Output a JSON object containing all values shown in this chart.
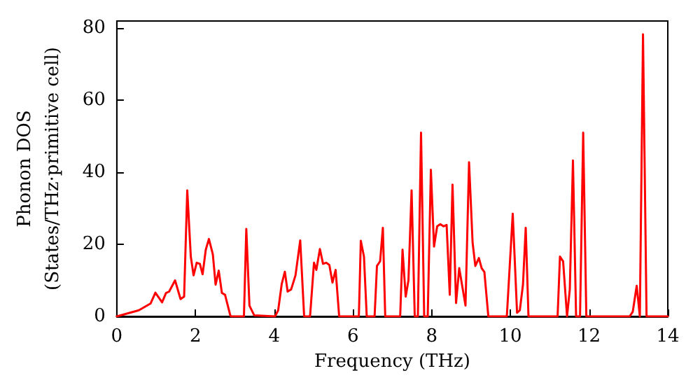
{
  "chart_data": {
    "type": "line",
    "xlabel": "Frequency (THz)",
    "ylabel": "Phonon DOS\n(States/THz·primitive cell)",
    "xlim": [
      0,
      14
    ],
    "xticks": [
      0,
      2,
      4,
      6,
      8,
      10,
      12,
      14
    ],
    "ylim": [
      0,
      82
    ],
    "yticks": [
      0,
      20,
      40,
      60,
      80
    ],
    "grid": false,
    "marker": "none",
    "line_style": "solid",
    "series": [
      {
        "color": "#ff0000",
        "x": [
          0,
          0.56,
          0.86,
          0.98,
          1.15,
          1.25,
          1.33,
          1.48,
          1.62,
          1.71,
          1.79,
          1.88,
          1.95,
          2.03,
          2.11,
          2.18,
          2.26,
          2.34,
          2.44,
          2.51,
          2.59,
          2.67,
          2.75,
          2.88,
          2.9,
          3.23,
          3.29,
          3.37,
          3.49,
          4.02,
          4.1,
          4.19,
          4.27,
          4.34,
          4.43,
          4.54,
          4.66,
          4.76,
          4.91,
          5.01,
          5.07,
          5.16,
          5.24,
          5.32,
          5.4,
          5.48,
          5.56,
          5.65,
          6.15,
          6.2,
          6.28,
          6.35,
          6.55,
          6.61,
          6.69,
          6.76,
          6.82,
          7.2,
          7.26,
          7.34,
          7.41,
          7.49,
          7.57,
          7.65,
          7.73,
          7.81,
          7.9,
          7.98,
          8.06,
          8.14,
          8.22,
          8.3,
          8.38,
          8.46,
          8.53,
          8.62,
          8.7,
          8.86,
          8.95,
          9.04,
          9.11,
          9.2,
          9.27,
          9.34,
          9.44,
          9.91,
          10.06,
          10.17,
          10.24,
          10.32,
          10.39,
          10.46,
          11.2,
          11.26,
          11.34,
          11.44,
          11.51,
          11.59,
          11.67,
          11.77,
          11.85,
          11.93,
          13.03,
          13.11,
          13.21,
          13.29,
          13.37,
          13.46,
          14
        ],
        "values": [
          0,
          1.7,
          3.6,
          6.6,
          3.9,
          6.5,
          6.9,
          10,
          4.8,
          5.5,
          35,
          16.6,
          11.4,
          14.9,
          14.6,
          11.7,
          18.5,
          21.5,
          17.2,
          8.8,
          12.7,
          6.5,
          6,
          0.4,
          0,
          0,
          24.3,
          3,
          0.3,
          0,
          1.7,
          9,
          12.4,
          6.9,
          7.5,
          11.4,
          21.1,
          0,
          0,
          14.9,
          12.9,
          18.7,
          14.6,
          14.9,
          14.3,
          9.4,
          12.9,
          0,
          0,
          21,
          16.6,
          0,
          0,
          14,
          15.3,
          24.6,
          0,
          0,
          18.5,
          5.5,
          10,
          35,
          0,
          0,
          51,
          0,
          0,
          40.7,
          19.4,
          25,
          25.6,
          25,
          25.4,
          6,
          36.6,
          3.7,
          13.4,
          3,
          42.8,
          20.5,
          14,
          16.2,
          13.4,
          12.3,
          0,
          0,
          28.5,
          1,
          1.7,
          8.8,
          24.6,
          0,
          0,
          16.6,
          15.3,
          0,
          7.5,
          43.3,
          0,
          0,
          51,
          0,
          0,
          1.3,
          8.5,
          0,
          78.3,
          0,
          0
        ]
      }
    ]
  }
}
